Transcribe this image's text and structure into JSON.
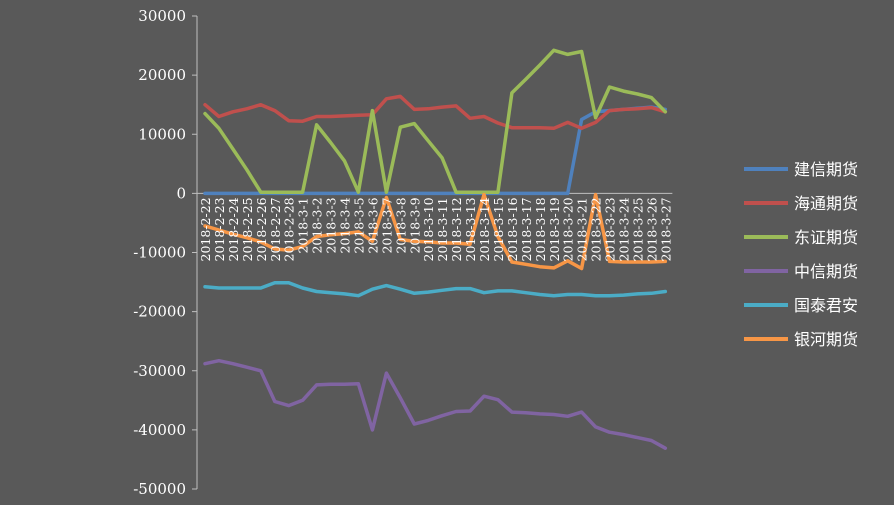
{
  "chart_data": {
    "type": "line",
    "title": "",
    "xlabel": "",
    "ylabel": "",
    "ylim": [
      -50000,
      30000
    ],
    "yticks": [
      "30000",
      "20000",
      "10000",
      "0",
      "-10000",
      "-20000",
      "-30000",
      "-40000",
      "-50000"
    ],
    "yticks_values": [
      30000,
      20000,
      10000,
      0,
      -10000,
      -20000,
      -30000,
      -40000,
      -50000
    ],
    "legend_position": "right",
    "categories": [
      "2018-2-22",
      "2018-2-23",
      "2018-2-24",
      "2018-2-25",
      "2018-2-26",
      "2018-2-27",
      "2018-2-28",
      "2018-3-1",
      "2018-3-2",
      "2018-3-3",
      "2018-3-4",
      "2018-3-5",
      "2018-3-6",
      "2018-3-7",
      "2018-3-8",
      "2018-3-9",
      "2018-3-10",
      "2018-3-11",
      "2018-3-12",
      "2018-3-13",
      "2018-3-14",
      "2018-3-15",
      "2018-3-16",
      "2018-3-17",
      "2018-3-18",
      "2018-3-19",
      "2018-3-20",
      "2018-3-21",
      "2018-3-22",
      "2018-3-23",
      "2018-3-24",
      "2018-3-25",
      "2018-3-26",
      "2018-3-27"
    ],
    "series": [
      {
        "name": "建信期货",
        "color": "#4F81BD",
        "values": [
          0,
          0,
          0,
          0,
          0,
          0,
          0,
          0,
          0,
          0,
          0,
          0,
          0,
          0,
          0,
          0,
          0,
          0,
          0,
          0,
          0,
          0,
          0,
          0,
          0,
          0,
          0,
          12500,
          13800,
          14000,
          14200,
          14400,
          14600,
          14200
        ]
      },
      {
        "name": "海通期货",
        "color": "#C0504D",
        "values": [
          15000,
          13000,
          13800,
          14300,
          15000,
          14000,
          12300,
          12200,
          13000,
          13000,
          13100,
          13200,
          13300,
          16000,
          16400,
          14200,
          14300,
          14600,
          14800,
          12700,
          13000,
          11900,
          11100,
          11100,
          11100,
          11000,
          12000,
          11000,
          12000,
          14000,
          14200,
          14300,
          14500,
          13800
        ]
      },
      {
        "name": "东证期货",
        "color": "#9BBB59",
        "values": [
          13500,
          11000,
          7500,
          4000,
          200,
          200,
          200,
          200,
          11600,
          8600,
          5500,
          200,
          14000,
          200,
          11200,
          11800,
          8900,
          6000,
          200,
          200,
          200,
          200,
          17000,
          19300,
          21700,
          24200,
          23500,
          24000,
          12800,
          18000,
          17300,
          16800,
          16200,
          13800
        ]
      },
      {
        "name": "中信期货",
        "color": "#8064A2",
        "values": [
          -28800,
          -28300,
          -28800,
          -29400,
          -30000,
          -35200,
          -35900,
          -35000,
          -32400,
          -32300,
          -32300,
          -32200,
          -40000,
          -30400,
          -34600,
          -39000,
          -38400,
          -37600,
          -36900,
          -36800,
          -34300,
          -34900,
          -37000,
          -37100,
          -37300,
          -37400,
          -37700,
          -37000,
          -39500,
          -40400,
          -40800,
          -41300,
          -41800,
          -43100
        ]
      },
      {
        "name": "国泰君安",
        "color": "#4BACC6",
        "values": [
          -15800,
          -16000,
          -16000,
          -16000,
          -16000,
          -15100,
          -15100,
          -16000,
          -16600,
          -16800,
          -17000,
          -17300,
          -16200,
          -15600,
          -16200,
          -16900,
          -16700,
          -16400,
          -16100,
          -16100,
          -16800,
          -16500,
          -16500,
          -16800,
          -17100,
          -17300,
          -17100,
          -17100,
          -17300,
          -17300,
          -17200,
          -17000,
          -16900,
          -16600
        ]
      },
      {
        "name": "银河期货",
        "color": "#F79646",
        "values": [
          -5500,
          -6200,
          -6900,
          -7500,
          -8200,
          -9400,
          -9600,
          -9000,
          -7300,
          -7000,
          -6800,
          -6500,
          -8100,
          -700,
          -7800,
          -8100,
          -8200,
          -8400,
          -8400,
          -8600,
          -200,
          -7300,
          -11600,
          -12000,
          -12400,
          -12600,
          -11400,
          -12700,
          -200,
          -11500,
          -11600,
          -11600,
          -11600,
          -11500
        ]
      }
    ]
  }
}
